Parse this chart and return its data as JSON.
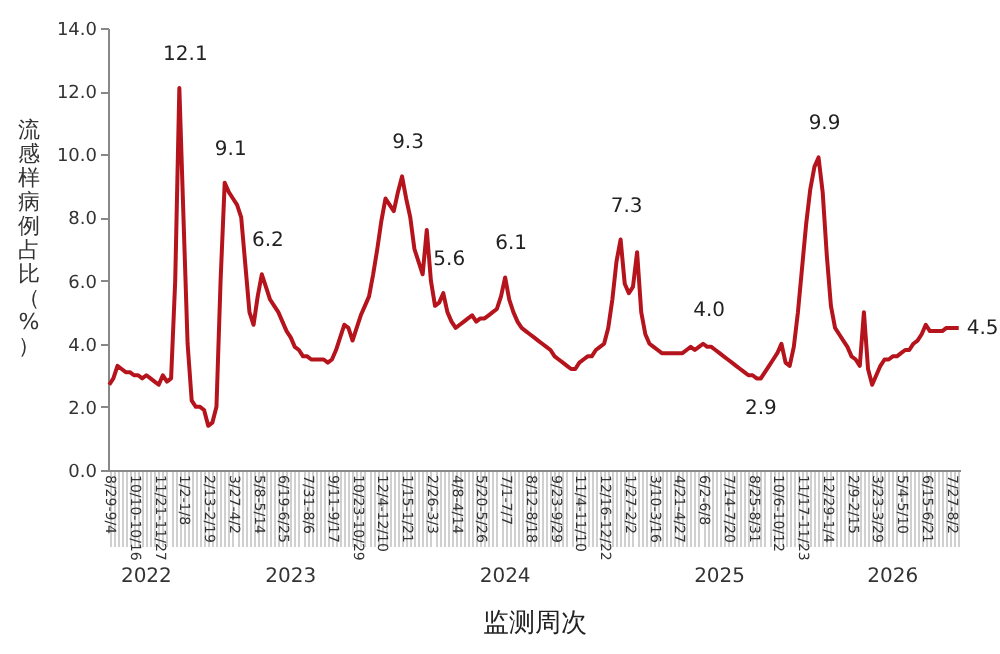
{
  "chart_data": {
    "type": "line",
    "xlabel": "监测周次",
    "ylabel": "流感样病例占比（%）",
    "color": "#b5141c",
    "line_style": "solid",
    "ylim": [
      0,
      14
    ],
    "yticks": [
      {
        "value": 0,
        "label": "0.0"
      },
      {
        "value": 2,
        "label": "2.0"
      },
      {
        "value": 4,
        "label": "4.0"
      },
      {
        "value": 6,
        "label": "6.0"
      },
      {
        "value": 8,
        "label": "8.0"
      },
      {
        "value": 10,
        "label": "10.0"
      },
      {
        "value": 12,
        "label": "12.0"
      },
      {
        "value": 14,
        "label": "14.0"
      }
    ],
    "annotations": [
      "2022",
      "2023",
      "2024",
      "2025",
      "2026"
    ],
    "categories": [
      "8/29-9/4",
      null,
      null,
      null,
      null,
      null,
      "10/10-10/16",
      null,
      null,
      null,
      null,
      null,
      "11/21-11/27",
      null,
      null,
      null,
      null,
      null,
      "1/2-1/8",
      null,
      null,
      null,
      null,
      null,
      "2/13-2/19",
      null,
      null,
      null,
      null,
      null,
      "3/27-4/2",
      null,
      null,
      null,
      null,
      null,
      "5/8-5/14",
      null,
      null,
      null,
      null,
      null,
      "6/19-6/25",
      null,
      null,
      null,
      null,
      null,
      "7/31-8/6",
      null,
      null,
      null,
      null,
      null,
      "9/11-9/17",
      null,
      null,
      null,
      null,
      null,
      "10/23-10/29",
      null,
      null,
      null,
      null,
      null,
      "12/4-12/10",
      null,
      null,
      null,
      null,
      null,
      "1/15-1/21",
      null,
      null,
      null,
      null,
      null,
      "2/26-3/3",
      null,
      null,
      null,
      null,
      null,
      "4/8-4/14",
      null,
      null,
      null,
      null,
      null,
      "5/20-5/26",
      null,
      null,
      null,
      null,
      null,
      "7/1-7/7",
      null,
      null,
      null,
      null,
      null,
      "8/12-8/18",
      null,
      null,
      null,
      null,
      null,
      "9/23-9/29",
      null,
      null,
      null,
      null,
      null,
      "11/4-11/10",
      null,
      null,
      null,
      null,
      null,
      "12/16-12/22",
      null,
      null,
      null,
      null,
      null,
      "1/27-2/2",
      null,
      null,
      null,
      null,
      null,
      "3/10-3/16",
      null,
      null,
      null,
      null,
      null,
      "4/21-4/27",
      null,
      null,
      null,
      null,
      null,
      "6/2-6/8",
      null,
      null,
      null,
      null,
      null,
      "7/14-7/20",
      null,
      null,
      null,
      null,
      null,
      "8/25-8/31",
      null,
      null,
      null,
      null,
      null,
      "10/6-10/12",
      null,
      null,
      null,
      null,
      null,
      "11/17-11/23",
      null,
      null,
      null,
      null,
      null,
      "12/29-1/4",
      null,
      null,
      null,
      null,
      null,
      "2/9-2/15",
      null,
      null,
      null,
      null,
      null,
      "3/23-3/29",
      null,
      null,
      null,
      null,
      null,
      "5/4-5/10",
      null,
      null,
      null,
      null,
      null,
      "6/15-6/21",
      null,
      null,
      null,
      null,
      null,
      "7/27-8/2",
      null,
      null
    ],
    "values": [
      2.7,
      2.9,
      3.3,
      3.2,
      3.1,
      3.1,
      3.0,
      3.0,
      2.9,
      3.0,
      2.9,
      2.8,
      2.7,
      3.0,
      2.8,
      2.9,
      6.0,
      12.1,
      8.0,
      4.0,
      2.2,
      2.0,
      2.0,
      1.9,
      1.4,
      1.5,
      2.0,
      6.0,
      9.1,
      8.8,
      8.6,
      8.4,
      8.0,
      6.5,
      5.0,
      4.6,
      5.5,
      6.2,
      5.8,
      5.4,
      5.2,
      5.0,
      4.7,
      4.4,
      4.2,
      3.9,
      3.8,
      3.6,
      3.6,
      3.5,
      3.5,
      3.5,
      3.5,
      3.4,
      3.5,
      3.8,
      4.2,
      4.6,
      4.5,
      4.1,
      4.5,
      4.9,
      5.2,
      5.5,
      6.2,
      7.0,
      7.9,
      8.6,
      8.4,
      8.2,
      8.8,
      9.3,
      8.6,
      8.0,
      7.0,
      6.6,
      6.2,
      7.6,
      6.0,
      5.2,
      5.3,
      5.6,
      5.0,
      4.7,
      4.5,
      4.6,
      4.7,
      4.8,
      4.9,
      4.7,
      4.8,
      4.8,
      4.9,
      5.0,
      5.1,
      5.5,
      6.1,
      5.4,
      5.0,
      4.7,
      4.5,
      4.4,
      4.3,
      4.2,
      4.1,
      4.0,
      3.9,
      3.8,
      3.6,
      3.5,
      3.4,
      3.3,
      3.2,
      3.2,
      3.4,
      3.5,
      3.6,
      3.6,
      3.8,
      3.9,
      4.0,
      4.5,
      5.4,
      6.6,
      7.3,
      5.9,
      5.6,
      5.8,
      6.9,
      5.0,
      4.3,
      4.0,
      3.9,
      3.8,
      3.7,
      3.7,
      3.7,
      3.7,
      3.7,
      3.7,
      3.8,
      3.9,
      3.8,
      3.9,
      4.0,
      3.9,
      3.9,
      3.8,
      3.7,
      3.6,
      3.5,
      3.4,
      3.3,
      3.2,
      3.1,
      3.0,
      3.0,
      2.9,
      2.9,
      3.1,
      3.3,
      3.5,
      3.7,
      4.0,
      3.4,
      3.3,
      3.9,
      5.0,
      6.4,
      7.8,
      8.9,
      9.6,
      9.9,
      8.8,
      6.8,
      5.2,
      4.5,
      4.3,
      4.1,
      3.9,
      3.6,
      3.5,
      3.3,
      5.0,
      3.2,
      2.7,
      3.0,
      3.3,
      3.5,
      3.5,
      3.6,
      3.6,
      3.7,
      3.8,
      3.8,
      4.0,
      4.1,
      4.3,
      4.6,
      4.4,
      4.4,
      4.4,
      4.4,
      4.5,
      4.5,
      4.5,
      4.5
    ],
    "value_labels": [
      null,
      null,
      null,
      null,
      null,
      null,
      null,
      null,
      null,
      null,
      null,
      null,
      null,
      null,
      null,
      null,
      null,
      "12.1",
      null,
      null,
      null,
      null,
      null,
      null,
      null,
      null,
      null,
      null,
      "9.1",
      null,
      null,
      null,
      null,
      null,
      null,
      null,
      null,
      "6.2",
      null,
      null,
      null,
      null,
      null,
      null,
      null,
      null,
      null,
      null,
      null,
      null,
      null,
      null,
      null,
      null,
      null,
      null,
      null,
      null,
      null,
      null,
      null,
      null,
      null,
      null,
      null,
      null,
      null,
      null,
      null,
      null,
      null,
      "9.3",
      null,
      null,
      null,
      null,
      null,
      null,
      null,
      null,
      null,
      "5.6",
      null,
      null,
      null,
      null,
      null,
      null,
      null,
      null,
      null,
      null,
      null,
      null,
      null,
      null,
      "6.1",
      null,
      null,
      null,
      null,
      null,
      null,
      null,
      null,
      null,
      null,
      null,
      null,
      null,
      null,
      null,
      null,
      null,
      null,
      null,
      null,
      null,
      null,
      null,
      null,
      null,
      null,
      null,
      "7.3",
      null,
      null,
      null,
      null,
      null,
      null,
      null,
      null,
      null,
      null,
      null,
      null,
      null,
      null,
      null,
      null,
      null,
      null,
      null,
      "4.0",
      null,
      null,
      null,
      null,
      null,
      null,
      null,
      null,
      null,
      null,
      null,
      null,
      null,
      "2.9",
      null,
      null,
      null,
      null,
      null,
      null,
      null,
      null,
      null,
      null,
      null,
      null,
      null,
      "9.9",
      null,
      null,
      null,
      null,
      null,
      null,
      null,
      null,
      null,
      null,
      null,
      null,
      null,
      null,
      null,
      null,
      null,
      null,
      null,
      null,
      null,
      null,
      null,
      null,
      null,
      null,
      null,
      null,
      null,
      null,
      null,
      null,
      null,
      "4.5"
    ]
  }
}
